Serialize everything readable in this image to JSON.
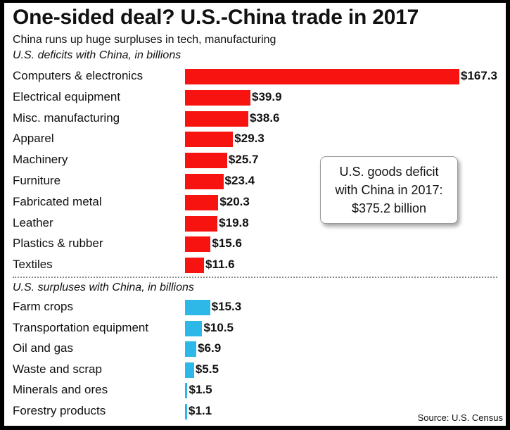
{
  "chart_data": {
    "type": "bar",
    "orientation": "horizontal",
    "title": "One-sided deal? U.S.-China trade in 2017",
    "subtitle": "China runs up huge surpluses in tech, manufacturing",
    "series": [
      {
        "name": "U.S. deficits with China, in billions",
        "color": "#f7130f",
        "categories": [
          "Computers & electronics",
          "Electrical equipment",
          "Misc. manufacturing",
          "Apparel",
          "Machinery",
          "Furniture",
          "Fabricated metal",
          "Leather",
          "Plastics & rubber",
          "Textiles"
        ],
        "values": [
          167.3,
          39.9,
          38.6,
          29.3,
          25.7,
          23.4,
          20.3,
          19.8,
          15.6,
          11.6
        ],
        "labels": [
          "$167.3",
          "$39.9",
          "$38.6",
          "$29.3",
          "$25.7",
          "$23.4",
          "$20.3",
          "$19.8",
          "$15.6",
          "$11.6"
        ]
      },
      {
        "name": "U.S. surpluses with China, in billions",
        "color": "#2db8e8",
        "categories": [
          "Farm crops",
          "Transportation equipment",
          "Oil and gas",
          "Waste and scrap",
          "Minerals and ores",
          "Forestry products"
        ],
        "values": [
          15.3,
          10.5,
          6.9,
          5.5,
          1.5,
          1.1
        ],
        "labels": [
          "$15.3",
          "$10.5",
          "$6.9",
          "$5.5",
          "$1.5",
          "$1.1"
        ]
      }
    ],
    "annotation": {
      "lines": [
        "U.S. goods deficit",
        "with China in 2017:",
        "$375.2 billion"
      ]
    },
    "source": "Source: U.S. Census",
    "grid": false,
    "legend": "none"
  }
}
